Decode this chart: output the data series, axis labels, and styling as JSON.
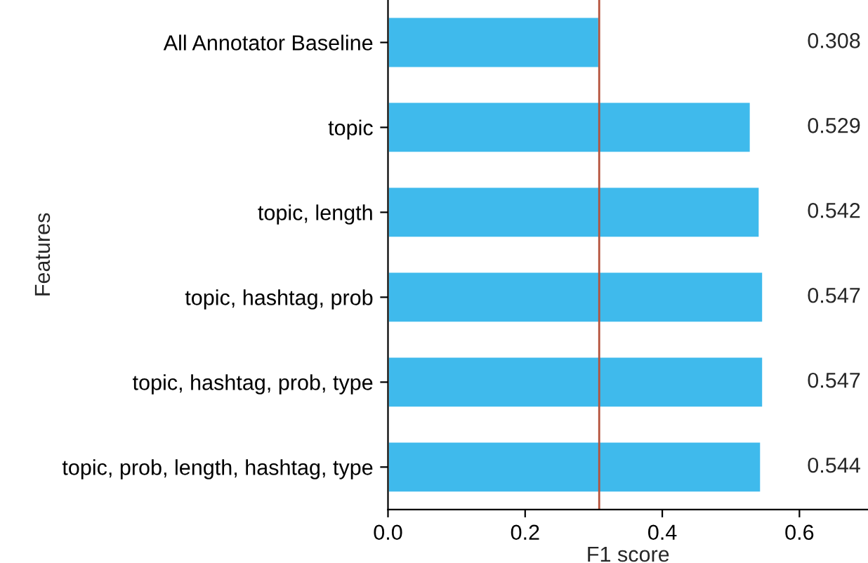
{
  "chart_data": {
    "type": "bar",
    "orientation": "horizontal",
    "xlabel": "F1 score",
    "ylabel": "Features",
    "categories": [
      "All Annotator Baseline",
      "topic",
      "topic, length",
      "topic, hashtag, prob",
      "topic, hashtag, prob, type",
      "topic, prob, length, hashtag, type"
    ],
    "values": [
      0.308,
      0.529,
      0.542,
      0.547,
      0.547,
      0.544
    ],
    "color": "#3fbaec",
    "data_labels": true,
    "xlim": [
      0,
      0.7
    ],
    "xticks": [
      {
        "value": 0,
        "label": "0.0"
      },
      {
        "value": 0.2,
        "label": "0.2"
      },
      {
        "value": 0.4,
        "label": "0.4"
      },
      {
        "value": 0.6,
        "label": "0.6"
      }
    ],
    "ref_lines": [
      {
        "axis": "x",
        "value": 0.308,
        "label": null,
        "color": "#b5523b"
      }
    ],
    "grid": false,
    "legend": false
  }
}
